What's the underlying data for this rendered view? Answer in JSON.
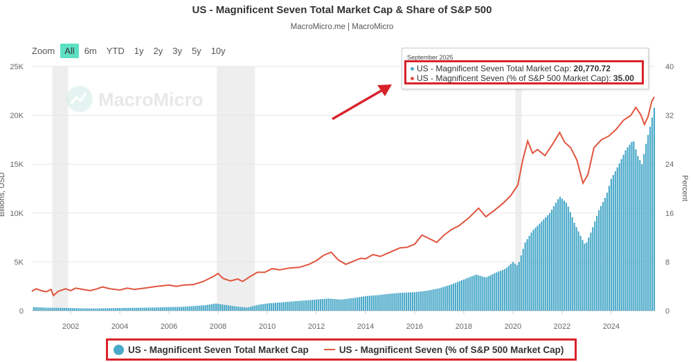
{
  "header": {
    "title": "US - Magnificent Seven Total Market Cap & Share of S&P 500",
    "subtitle": "MacroMicro.me | MacroMicro"
  },
  "zoom": {
    "label": "Zoom",
    "buttons": [
      "All",
      "6m",
      "YTD",
      "1y",
      "2y",
      "3y",
      "5y",
      "10y"
    ],
    "active": "All"
  },
  "watermark": {
    "text": "MacroMicro"
  },
  "tooltip": {
    "date": "September 2025",
    "rows": [
      {
        "label": "US - Magnificent Seven Total Market Cap: ",
        "value": "20,770.72",
        "color": "#4aa9c9"
      },
      {
        "label": "US - Magnificent Seven (% of S&P 500 Market Cap): ",
        "value": "35.00",
        "color": "#e0533d"
      }
    ]
  },
  "legend": {
    "items": [
      {
        "label": "US - Magnificent Seven Total Market Cap",
        "color": "#4aa9c9",
        "kind": "dot"
      },
      {
        "label": "US - Magnificent Seven (% of S&P 500 Market Cap)",
        "color": "#e0533d",
        "kind": "line"
      }
    ]
  },
  "chart_data": {
    "type": "bar",
    "title": "US - Magnificent Seven Total Market Cap & Share of S&P 500",
    "subtitle": "MacroMicro.me | MacroMicro",
    "ylabel_left": "Billions, USD",
    "ylabel_right": "Percent",
    "x_ticks": [
      "2002",
      "2004",
      "2006",
      "2008",
      "2010",
      "2012",
      "2014",
      "2016",
      "2018",
      "2020",
      "2022",
      "2024"
    ],
    "y_left_ticks": [
      "0",
      "5K",
      "10K",
      "15K",
      "20K",
      "25K"
    ],
    "y_right_ticks": [
      "0",
      "8",
      "16",
      "24",
      "32",
      "40"
    ],
    "y_left_range": [
      0,
      25000
    ],
    "y_right_range": [
      0,
      40
    ],
    "x_range": [
      2000.42,
      2025.75
    ],
    "recession_shading": [
      [
        2001.25,
        2001.9
      ],
      [
        2007.95,
        2009.5
      ],
      [
        2020.1,
        2020.35
      ]
    ],
    "grid": true,
    "legend_position": "bottom",
    "series": [
      {
        "name": "US - Magnificent Seven Total Market Cap",
        "kind": "bar",
        "axis": "left",
        "color": "#4aa9c9",
        "points": [
          [
            2000.5,
            380
          ],
          [
            2001.0,
            320
          ],
          [
            2001.5,
            300
          ],
          [
            2002.0,
            280
          ],
          [
            2002.5,
            250
          ],
          [
            2003.0,
            240
          ],
          [
            2003.5,
            260
          ],
          [
            2004.0,
            280
          ],
          [
            2004.5,
            300
          ],
          [
            2005.0,
            320
          ],
          [
            2005.5,
            340
          ],
          [
            2006.0,
            380
          ],
          [
            2006.5,
            400
          ],
          [
            2007.0,
            480
          ],
          [
            2007.5,
            580
          ],
          [
            2007.9,
            750
          ],
          [
            2008.3,
            600
          ],
          [
            2008.8,
            420
          ],
          [
            2009.2,
            330
          ],
          [
            2009.6,
            600
          ],
          [
            2010.0,
            750
          ],
          [
            2010.5,
            850
          ],
          [
            2011.0,
            950
          ],
          [
            2011.5,
            1050
          ],
          [
            2012.0,
            1150
          ],
          [
            2012.5,
            1250
          ],
          [
            2013.0,
            1150
          ],
          [
            2013.5,
            1300
          ],
          [
            2014.0,
            1500
          ],
          [
            2014.5,
            1600
          ],
          [
            2015.0,
            1750
          ],
          [
            2015.5,
            1850
          ],
          [
            2016.0,
            1900
          ],
          [
            2016.5,
            2050
          ],
          [
            2017.0,
            2300
          ],
          [
            2017.5,
            2700
          ],
          [
            2018.0,
            3200
          ],
          [
            2018.5,
            3700
          ],
          [
            2018.9,
            3400
          ],
          [
            2019.3,
            3900
          ],
          [
            2019.7,
            4300
          ],
          [
            2020.0,
            5000
          ],
          [
            2020.2,
            4600
          ],
          [
            2020.5,
            7000
          ],
          [
            2020.8,
            8200
          ],
          [
            2021.0,
            8700
          ],
          [
            2021.5,
            10000
          ],
          [
            2021.9,
            11700
          ],
          [
            2022.2,
            11000
          ],
          [
            2022.5,
            9000
          ],
          [
            2022.8,
            7400
          ],
          [
            2022.95,
            6700
          ],
          [
            2023.2,
            8200
          ],
          [
            2023.5,
            10300
          ],
          [
            2023.8,
            11800
          ],
          [
            2024.0,
            13500
          ],
          [
            2024.3,
            14900
          ],
          [
            2024.6,
            16500
          ],
          [
            2024.9,
            17500
          ],
          [
            2025.05,
            16000
          ],
          [
            2025.25,
            15000
          ],
          [
            2025.45,
            17500
          ],
          [
            2025.6,
            19000
          ],
          [
            2025.75,
            20770.72
          ]
        ]
      },
      {
        "name": "US - Magnificent Seven (% of S&P 500 Market Cap)",
        "kind": "line",
        "axis": "right",
        "color": "#e0533d",
        "points": [
          [
            2000.42,
            3.2
          ],
          [
            2000.6,
            3.6
          ],
          [
            2000.8,
            3.3
          ],
          [
            2001.0,
            3.1
          ],
          [
            2001.2,
            3.5
          ],
          [
            2001.3,
            2.5
          ],
          [
            2001.5,
            3.2
          ],
          [
            2001.8,
            3.6
          ],
          [
            2002.0,
            3.3
          ],
          [
            2002.2,
            3.7
          ],
          [
            2002.5,
            3.5
          ],
          [
            2002.8,
            3.3
          ],
          [
            2003.0,
            3.5
          ],
          [
            2003.3,
            3.9
          ],
          [
            2003.6,
            3.6
          ],
          [
            2004.0,
            3.4
          ],
          [
            2004.3,
            3.7
          ],
          [
            2004.6,
            3.5
          ],
          [
            2005.0,
            3.7
          ],
          [
            2005.5,
            4.0
          ],
          [
            2006.0,
            4.2
          ],
          [
            2006.3,
            4.0
          ],
          [
            2006.6,
            4.2
          ],
          [
            2007.0,
            4.3
          ],
          [
            2007.4,
            4.8
          ],
          [
            2007.8,
            5.6
          ],
          [
            2008.0,
            6.1
          ],
          [
            2008.2,
            5.3
          ],
          [
            2008.5,
            4.9
          ],
          [
            2008.8,
            5.2
          ],
          [
            2009.0,
            4.8
          ],
          [
            2009.3,
            5.6
          ],
          [
            2009.6,
            6.3
          ],
          [
            2009.9,
            6.3
          ],
          [
            2010.2,
            6.9
          ],
          [
            2010.5,
            6.7
          ],
          [
            2010.9,
            7.0
          ],
          [
            2011.3,
            7.1
          ],
          [
            2011.7,
            7.6
          ],
          [
            2012.0,
            8.2
          ],
          [
            2012.3,
            9.1
          ],
          [
            2012.6,
            9.6
          ],
          [
            2012.9,
            8.3
          ],
          [
            2013.2,
            7.6
          ],
          [
            2013.5,
            8.1
          ],
          [
            2013.8,
            8.6
          ],
          [
            2014.0,
            8.5
          ],
          [
            2014.3,
            9.2
          ],
          [
            2014.6,
            8.9
          ],
          [
            2015.0,
            9.6
          ],
          [
            2015.4,
            10.3
          ],
          [
            2015.7,
            10.4
          ],
          [
            2016.0,
            10.9
          ],
          [
            2016.3,
            12.4
          ],
          [
            2016.6,
            11.8
          ],
          [
            2016.9,
            11.2
          ],
          [
            2017.2,
            12.4
          ],
          [
            2017.5,
            13.3
          ],
          [
            2017.8,
            13.9
          ],
          [
            2018.2,
            15.2
          ],
          [
            2018.6,
            16.8
          ],
          [
            2018.9,
            15.4
          ],
          [
            2019.2,
            16.3
          ],
          [
            2019.6,
            17.6
          ],
          [
            2019.9,
            18.8
          ],
          [
            2020.2,
            20.6
          ],
          [
            2020.4,
            24.7
          ],
          [
            2020.6,
            27.8
          ],
          [
            2020.8,
            25.8
          ],
          [
            2021.0,
            26.4
          ],
          [
            2021.3,
            25.4
          ],
          [
            2021.6,
            27.2
          ],
          [
            2021.9,
            29.2
          ],
          [
            2022.1,
            27.6
          ],
          [
            2022.35,
            26.7
          ],
          [
            2022.6,
            24.7
          ],
          [
            2022.85,
            20.9
          ],
          [
            2023.05,
            22.3
          ],
          [
            2023.3,
            26.7
          ],
          [
            2023.6,
            28.0
          ],
          [
            2023.9,
            28.6
          ],
          [
            2024.2,
            29.7
          ],
          [
            2024.5,
            31.2
          ],
          [
            2024.8,
            32.0
          ],
          [
            2025.0,
            33.3
          ],
          [
            2025.2,
            32.1
          ],
          [
            2025.35,
            30.5
          ],
          [
            2025.5,
            31.8
          ],
          [
            2025.65,
            34.3
          ],
          [
            2025.75,
            35.0
          ]
        ]
      }
    ]
  }
}
